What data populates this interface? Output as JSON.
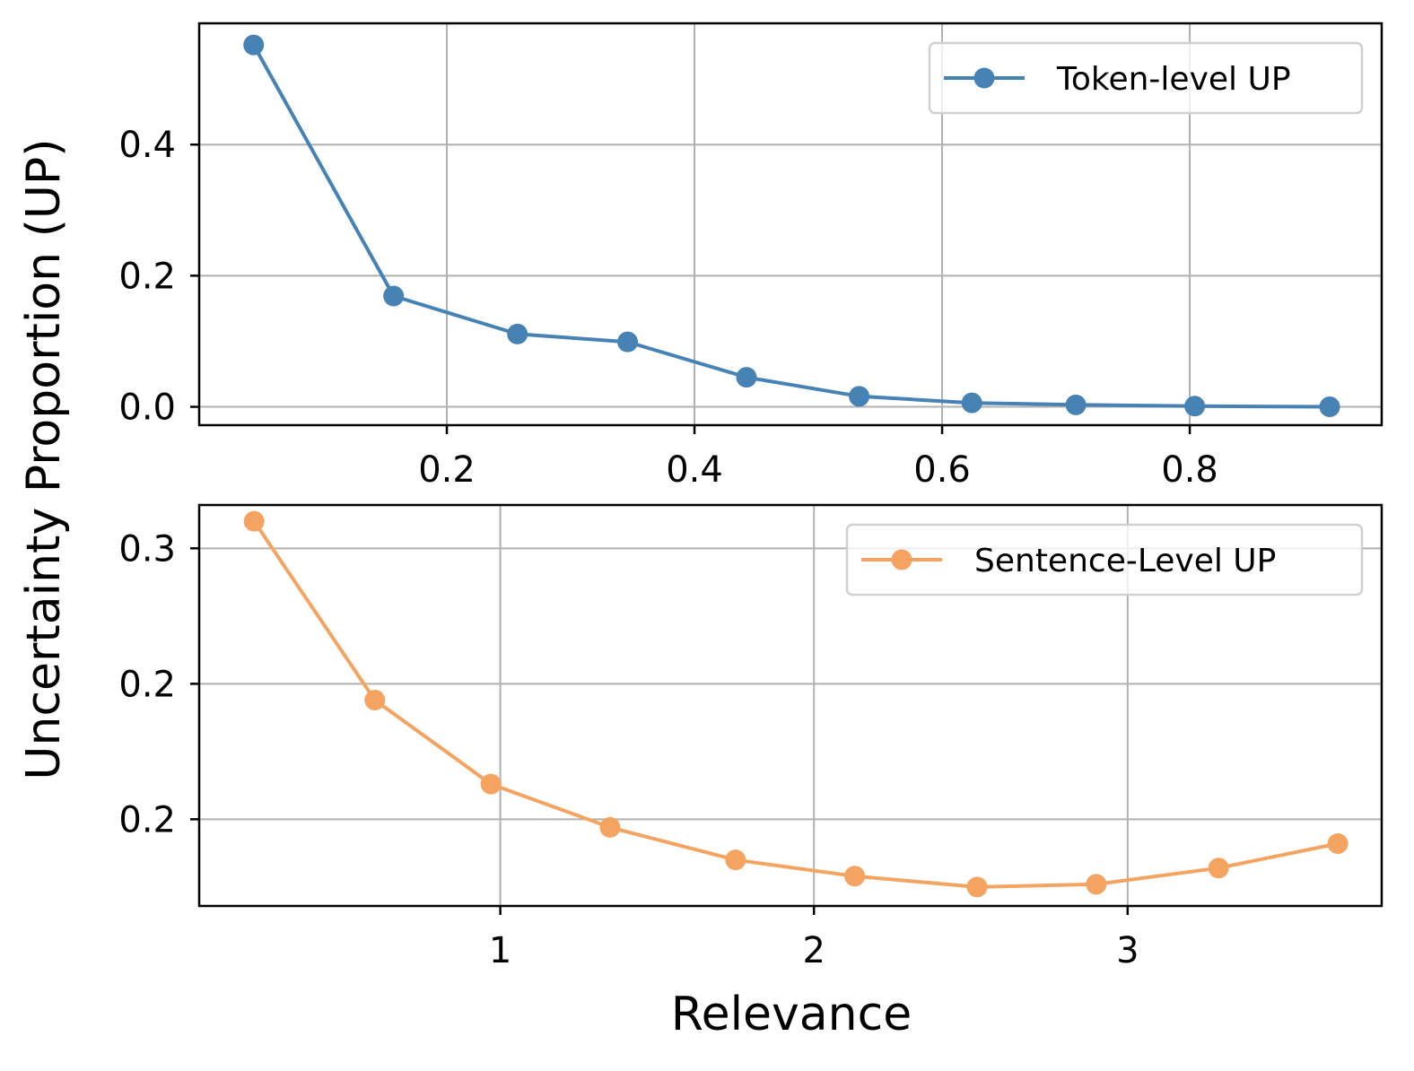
{
  "chart_data": [
    {
      "type": "line",
      "xlabel": "",
      "ylabel": "Uncertainty Proportion (UP)",
      "xlim": [
        0.0,
        0.955
      ],
      "ylim": [
        -0.028,
        0.585
      ],
      "xticks": [
        0.2,
        0.4,
        0.6,
        0.8
      ],
      "xtick_labels": [
        "0.2",
        "0.4",
        "0.6",
        "0.8"
      ],
      "yticks": [
        0.0,
        0.2,
        0.4
      ],
      "ytick_labels": [
        "0.0",
        "0.2",
        "0.4"
      ],
      "grid": true,
      "legend_position": "top-right",
      "series": [
        {
          "name": "Token-level UP",
          "color": "#4682b4",
          "marker": "circle",
          "x": [
            0.044,
            0.157,
            0.257,
            0.346,
            0.442,
            0.533,
            0.624,
            0.708,
            0.804,
            0.913
          ],
          "y": [
            0.552,
            0.169,
            0.111,
            0.099,
            0.045,
            0.016,
            0.006,
            0.003,
            0.001,
            0.0
          ]
        }
      ]
    },
    {
      "type": "line",
      "xlabel": "Relevance",
      "ylabel": "Uncertainty Proportion (UP)",
      "xlim": [
        0.04,
        3.81
      ],
      "ylim": [
        0.168,
        0.316
      ],
      "xticks": [
        1,
        2,
        3
      ],
      "xtick_labels": [
        "1",
        "2",
        "3"
      ],
      "yticks": [
        0.2,
        0.25,
        0.3
      ],
      "ytick_labels": [
        "0.2",
        "0.2",
        "0.3"
      ],
      "grid": true,
      "legend_position": "top-right",
      "series": [
        {
          "name": "Sentence-Level UP",
          "color": "#f4a460",
          "marker": "circle",
          "x": [
            0.215,
            0.6,
            0.97,
            1.35,
            1.75,
            2.13,
            2.52,
            2.9,
            3.29,
            3.67
          ],
          "y": [
            0.31,
            0.244,
            0.213,
            0.197,
            0.185,
            0.179,
            0.175,
            0.176,
            0.182,
            0.191
          ]
        }
      ]
    }
  ]
}
